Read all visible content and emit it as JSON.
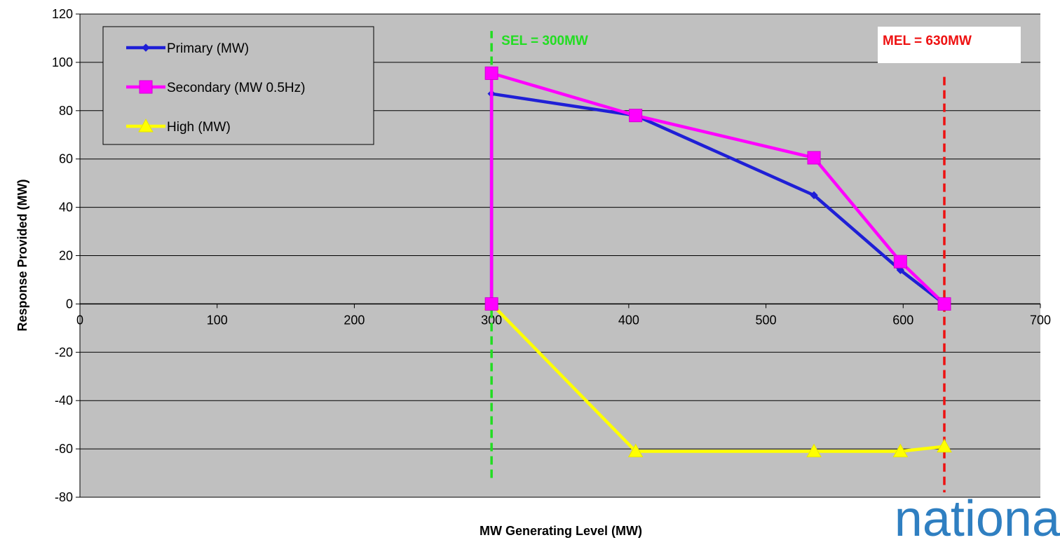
{
  "chart_data": {
    "type": "line",
    "xlabel": "MW Generating Level (MW)",
    "ylabel": "Response Provided (MW)",
    "xlim": [
      0,
      700
    ],
    "ylim": [
      -80,
      120
    ],
    "x_ticks": [
      0,
      100,
      200,
      300,
      400,
      500,
      600,
      700
    ],
    "y_ticks": [
      -80,
      -60,
      -40,
      -20,
      0,
      20,
      40,
      60,
      80,
      100,
      120
    ],
    "x_tick_labels": [
      "0",
      "100",
      "200",
      "300",
      "400",
      "500",
      "600",
      "700"
    ],
    "y_tick_labels": [
      "-80",
      "-60",
      "-40",
      "-20",
      "0",
      "20",
      "40",
      "60",
      "80",
      "100",
      "120"
    ],
    "grid": "horizontal",
    "legend_position": "top-left",
    "plot_background": "#c0c0c0",
    "series": [
      {
        "name": "Primary (MW)",
        "color": "#1f1fd6",
        "marker": "diamond",
        "points": [
          [
            300,
            0
          ],
          [
            300,
            87
          ],
          [
            405,
            78
          ],
          [
            535,
            45
          ],
          [
            598,
            14
          ],
          [
            630,
            0
          ]
        ]
      },
      {
        "name": "Secondary (MW 0.5Hz)",
        "color": "#ff00ff",
        "marker": "square",
        "points": [
          [
            300,
            0
          ],
          [
            300,
            95.5
          ],
          [
            405,
            78
          ],
          [
            535,
            60.5
          ],
          [
            598,
            17.5
          ],
          [
            630,
            0
          ]
        ]
      },
      {
        "name": "High (MW)",
        "color": "#ffff00",
        "marker": "triangle",
        "points": [
          [
            300,
            0
          ],
          [
            405,
            -61
          ],
          [
            535,
            -61
          ],
          [
            598,
            -61
          ],
          [
            630,
            -59
          ]
        ]
      }
    ],
    "annotations": [
      {
        "label": "SEL = 300MW",
        "x": 300,
        "color": "#22dd22",
        "line_style": "dashed"
      },
      {
        "label": "MEL = 630MW",
        "x": 630,
        "color": "#ee1111",
        "line_style": "dashed"
      }
    ]
  },
  "logo": {
    "text": "nationa"
  }
}
